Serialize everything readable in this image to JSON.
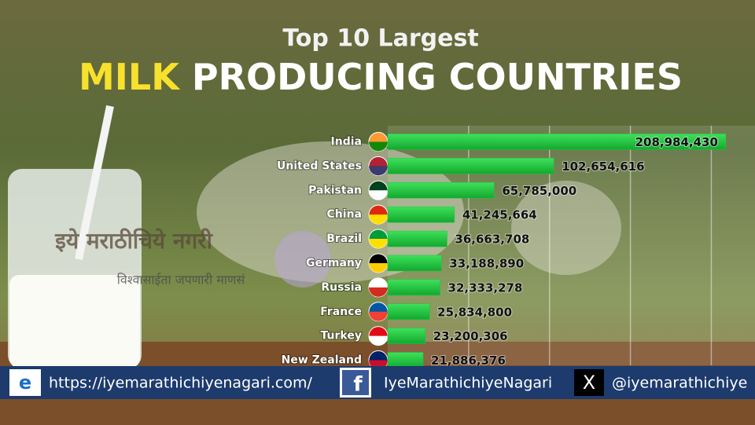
{
  "chart_data": {
    "type": "hbar",
    "title": "Top 10 Largest",
    "headline": {
      "highlight": "MILK",
      "rest": "PRODUCING COUNTRIES"
    },
    "categories": [
      "India",
      "United States",
      "Pakistan",
      "China",
      "Brazil",
      "Germany",
      "Russia",
      "France",
      "Turkey",
      "New Zealand"
    ],
    "values": [
      208984430,
      102654616,
      65785000,
      41245664,
      36663708,
      33188890,
      32333278,
      25834800,
      23200306,
      21886376
    ],
    "value_labels": [
      "208,984,430",
      "102,654,616",
      "65,785,000",
      "41,245,664",
      "36,663,708",
      "33,188,890",
      "32,333,278",
      "25,834,800",
      "23,200,306",
      "21,886,376"
    ],
    "xlim": [
      0,
      227000000
    ],
    "xgrid": [
      50000000,
      100000000,
      150000000,
      200000000
    ],
    "color": "#22c445"
  },
  "watermark": {
    "title": "इये मराठीचिये नगरी",
    "tagline": "विश्वासाईता जपणारी माणसं"
  },
  "footer": {
    "website": "https://iyemarathichiyenagari.com/",
    "facebook": "IyeMarathichiyeNagari",
    "x": "@iyemarathichiye"
  }
}
